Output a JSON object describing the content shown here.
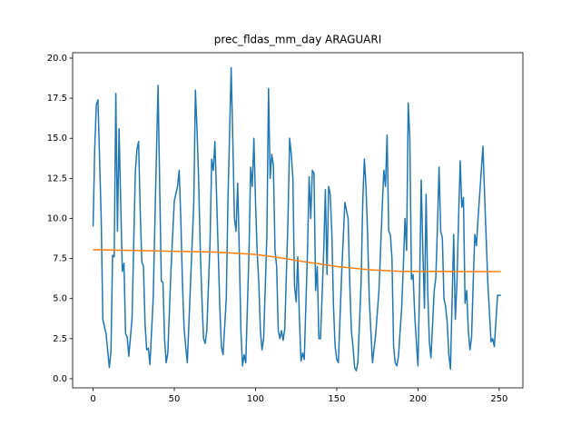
{
  "chart_data": {
    "type": "line",
    "title": "prec_fldas_mm_day ARAGUARI",
    "xlim": [
      -12.6,
      264.6
    ],
    "ylim": [
      -0.57,
      20.34
    ],
    "xticks": [
      0,
      50,
      100,
      150,
      200,
      250
    ],
    "yticks": [
      {
        "value": 0,
        "label": "0.0"
      },
      2.5,
      {
        "value": 5,
        "label": "5.0"
      },
      7.5,
      {
        "value": 10,
        "label": "10.0"
      },
      12.5,
      {
        "value": 15,
        "label": "15.0"
      },
      17.5,
      {
        "value": 20,
        "label": "20.0"
      }
    ],
    "series": [
      {
        "color": "#1f77b4",
        "x": [
          0,
          1,
          2,
          3,
          5,
          6,
          8,
          10,
          11,
          12,
          13,
          14,
          15,
          16,
          17,
          18,
          19,
          20,
          21,
          22,
          24,
          26,
          27,
          28,
          29,
          30,
          31,
          32,
          33,
          34,
          35,
          37,
          39,
          40,
          41,
          42,
          43,
          44,
          45,
          46,
          48,
          50,
          52,
          53,
          54,
          55,
          56,
          57,
          58,
          60,
          62,
          63,
          64,
          65,
          66,
          67,
          68,
          69,
          70,
          72,
          73,
          74,
          75,
          76,
          77,
          78,
          79,
          80,
          82,
          83,
          85,
          86,
          87,
          88,
          89,
          90,
          91,
          92,
          93,
          94,
          96,
          97,
          98,
          99,
          100,
          101,
          102,
          103,
          104,
          105,
          107,
          108,
          109,
          110,
          111,
          112,
          113,
          114,
          115,
          116,
          117,
          118,
          120,
          121,
          122,
          123,
          124,
          125,
          126,
          127,
          128,
          129,
          130,
          132,
          133,
          134,
          135,
          136,
          137,
          138,
          139,
          140,
          142,
          143,
          144,
          145,
          146,
          147,
          148,
          149,
          150,
          151,
          153,
          155,
          157,
          158,
          159,
          160,
          161,
          162,
          163,
          165,
          166,
          167,
          168,
          169,
          170,
          171,
          172,
          174,
          176,
          178,
          179,
          180,
          181,
          182,
          183,
          184,
          185,
          186,
          187,
          188,
          190,
          191,
          192,
          193,
          194,
          195,
          196,
          197,
          198,
          199,
          200,
          201,
          202,
          203,
          204,
          205,
          206,
          207,
          208,
          210,
          211,
          212,
          213,
          214,
          215,
          216,
          217,
          218,
          219,
          220,
          222,
          223,
          224,
          225,
          226,
          227,
          228,
          229,
          230,
          231,
          232,
          233,
          234,
          235,
          236,
          237,
          240,
          241,
          243,
          245,
          246,
          247,
          249,
          251
        ],
        "values": [
          9.5,
          14.3,
          17.1,
          17.4,
          10,
          3.7,
          2.8,
          0.7,
          1.7,
          7.7,
          7.6,
          17.8,
          9.2,
          15.6,
          11,
          6.7,
          7.2,
          2.8,
          2.6,
          1.4,
          3.8,
          12.9,
          14.3,
          14.8,
          10.5,
          7.3,
          7,
          3.4,
          1.8,
          1.9,
          0.9,
          5,
          14,
          18.3,
          12,
          6.1,
          6,
          2.5,
          1,
          1.6,
          6.9,
          11.1,
          12,
          13,
          10,
          6,
          3.2,
          2,
          1,
          6,
          11,
          18,
          15.5,
          12.3,
          8,
          5,
          2.5,
          2.2,
          3,
          8.5,
          13.7,
          13,
          14.8,
          11.5,
          8,
          4.5,
          2,
          1.5,
          5,
          11,
          19.4,
          15,
          10,
          9.2,
          12.2,
          8,
          3,
          0.8,
          1.5,
          1,
          8,
          13.2,
          12,
          15,
          11,
          7.9,
          6,
          3,
          1.8,
          2.5,
          9,
          18.1,
          12.5,
          14,
          13.3,
          8,
          7,
          3,
          2.5,
          3,
          2.4,
          3.1,
          10,
          15,
          14,
          12.5,
          5.8,
          4.8,
          7.6,
          3.8,
          1.1,
          1.6,
          1.2,
          8,
          12.6,
          10,
          13,
          12.8,
          5.5,
          7,
          2.5,
          2.5,
          8,
          11.8,
          6.5,
          12,
          11.5,
          9,
          4.5,
          2,
          1.2,
          1,
          6.5,
          11,
          10,
          6,
          3,
          2,
          0.7,
          0.5,
          1,
          6,
          11,
          13.7,
          12,
          9,
          5,
          3,
          1,
          2.8,
          5.5,
          10.7,
          13,
          12,
          15.2,
          9.2,
          9,
          7.5,
          2,
          1,
          0.8,
          1.4,
          4.5,
          7,
          10,
          8,
          17.2,
          15,
          6.2,
          6.5,
          4,
          2.3,
          0.8,
          5.7,
          12.4,
          8,
          4.4,
          11.5,
          5.5,
          2.3,
          1.3,
          5.5,
          6.3,
          9.5,
          13.2,
          9.2,
          8.8,
          5,
          4.5,
          3.5,
          1.5,
          0.6,
          9,
          3.7,
          6,
          10,
          13.6,
          10.7,
          11.3,
          4.7,
          5.5,
          3,
          1.8,
          2.6,
          6,
          9,
          8.3,
          10,
          14.5,
          11.5,
          6,
          2.3,
          2.5,
          2,
          5.2,
          5.2
        ]
      },
      {
        "color": "#ff7f0e",
        "x": [
          0,
          25,
          50,
          75,
          100,
          115,
          130,
          150,
          170,
          190,
          210,
          230,
          251
        ],
        "values": [
          8.05,
          8,
          7.95,
          7.9,
          7.75,
          7.55,
          7.3,
          7.0,
          6.8,
          6.7,
          6.7,
          6.68,
          6.68
        ]
      }
    ]
  }
}
